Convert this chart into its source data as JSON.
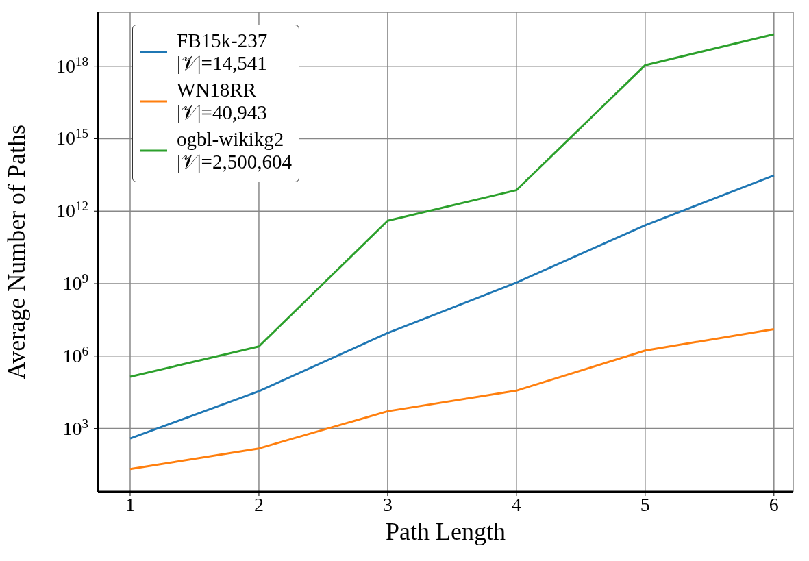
{
  "chart_data": {
    "type": "line",
    "xlabel": "Path Length",
    "ylabel": "Average Number of Paths",
    "log": "y",
    "grid": true,
    "legend": "top left",
    "marker": "none",
    "line_style": "solid",
    "x": [
      1,
      2,
      3,
      4,
      5,
      6
    ],
    "xlim": [
      0.75,
      6.15
    ],
    "xticks": [
      1,
      2,
      3,
      4,
      5,
      6
    ],
    "ylim": [
      2.4,
      1.7e+20
    ],
    "yticks": [
      {
        "value": 1000,
        "label": "10$^{3}$"
      },
      {
        "value": 1000000,
        "label": "10$^{6}$"
      },
      {
        "value": 1000000000,
        "label": "10$^{9}$"
      },
      {
        "value": 1000000000000,
        "label": "10$^{12}$"
      },
      {
        "value": 1000000000000000,
        "label": "10$^{15}$"
      },
      {
        "value": 1000000000000000000,
        "label": "10$^{18}$"
      }
    ],
    "series": [
      {
        "name": "FB15k-237\n|𝒱|=14,541",
        "color": "#1f77b4",
        "values": [
          390,
          35000,
          9000000,
          1100000000,
          260000000000,
          30000000000000
        ]
      },
      {
        "name": "WN18RR\n|𝒱|=40,943",
        "color": "#ff7f0e",
        "values": [
          21,
          150,
          5200,
          37000,
          1700000,
          13000000
        ]
      },
      {
        "name": "ogbl-wikikg2\n|𝒱|=2,500,604",
        "color": "#2ca02c",
        "values": [
          140000,
          2500000,
          400000000000,
          7400000000000,
          1100000000000000000,
          21000000000000000000
        ]
      }
    ]
  }
}
